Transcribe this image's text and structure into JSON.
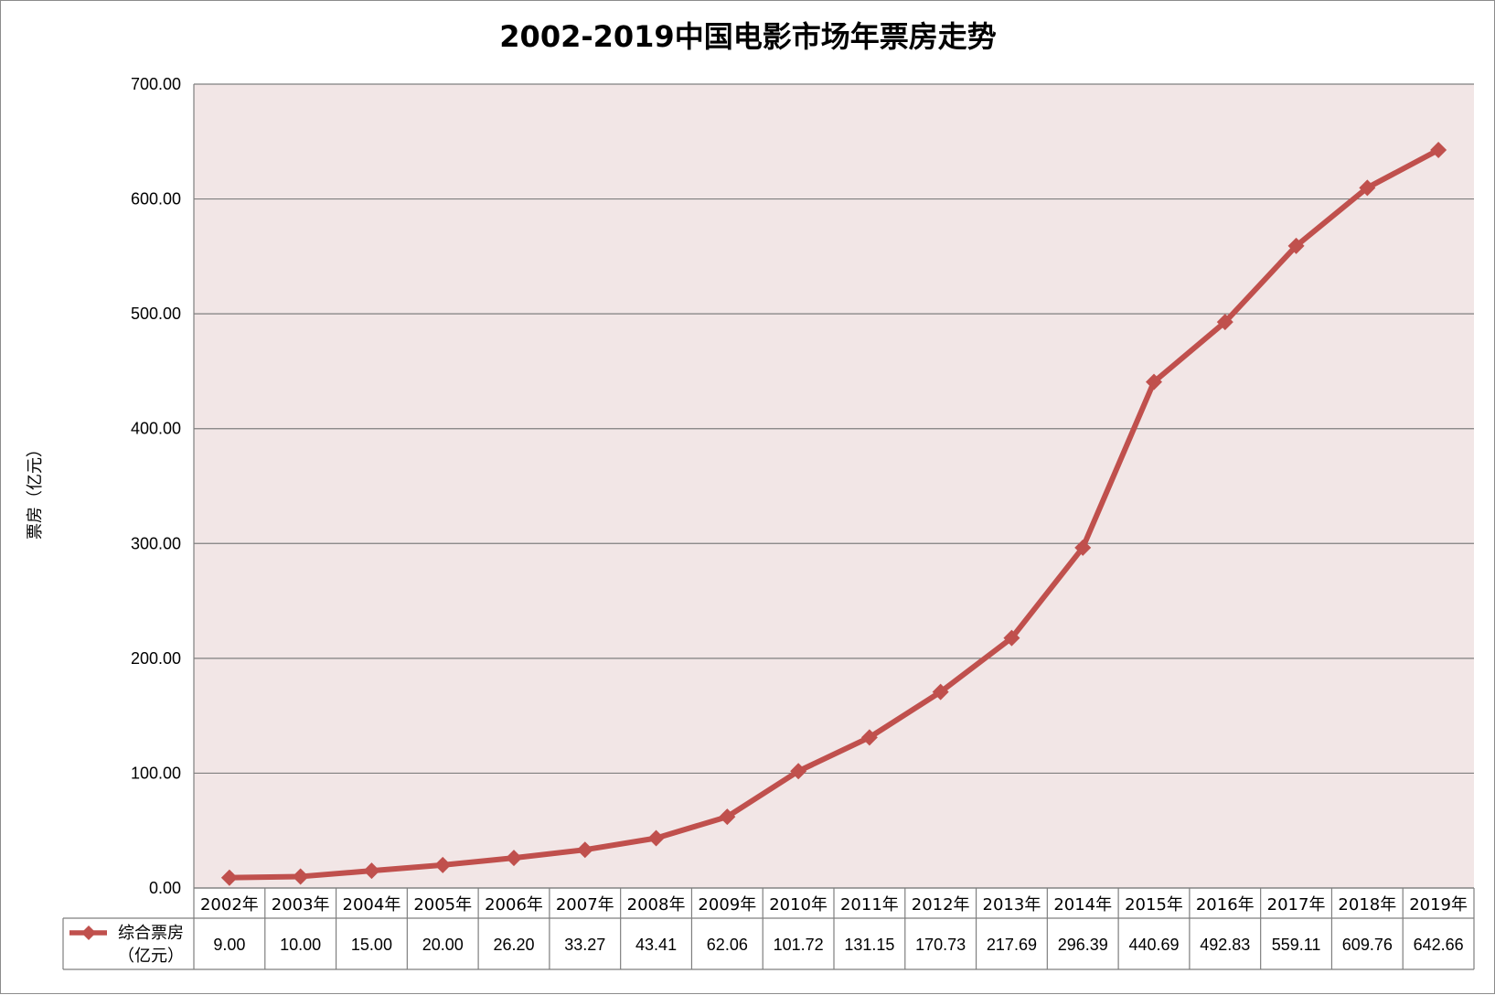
{
  "chart_data": {
    "type": "line",
    "title": "2002-2019中国电影市场年票房走势",
    "ylabel": "票房（亿元）",
    "xlabel": "",
    "ylim": [
      0,
      700
    ],
    "ytick_step": 100,
    "ytick_labels": [
      "0.00",
      "100.00",
      "200.00",
      "300.00",
      "400.00",
      "500.00",
      "600.00",
      "700.00"
    ],
    "grid": true,
    "legend": "data-table",
    "categories": [
      "2002年",
      "2003年",
      "2004年",
      "2005年",
      "2006年",
      "2007年",
      "2008年",
      "2009年",
      "2010年",
      "2011年",
      "2012年",
      "2013年",
      "2014年",
      "2015年",
      "2016年",
      "2017年",
      "2018年",
      "2019年"
    ],
    "series": [
      {
        "name": "综合票房（亿元）",
        "name_lines": [
          "综合票房",
          "（亿元）"
        ],
        "color": "#c0504d",
        "marker": "diamond",
        "values": [
          9.0,
          10.0,
          15.0,
          20.0,
          26.2,
          33.27,
          43.41,
          62.06,
          101.72,
          131.15,
          170.73,
          217.69,
          296.39,
          440.69,
          492.83,
          559.11,
          609.76,
          642.66
        ],
        "value_labels": [
          "9.00",
          "10.00",
          "15.00",
          "20.00",
          "26.20",
          "33.27",
          "43.41",
          "62.06",
          "101.72",
          "131.15",
          "170.73",
          "217.69",
          "296.39",
          "440.69",
          "492.83",
          "559.11",
          "609.76",
          "642.66"
        ]
      }
    ],
    "colors": {
      "plot_background": "#f2e6e6",
      "gridline": "#7f7f7f",
      "table_border": "#7f7f7f"
    }
  }
}
